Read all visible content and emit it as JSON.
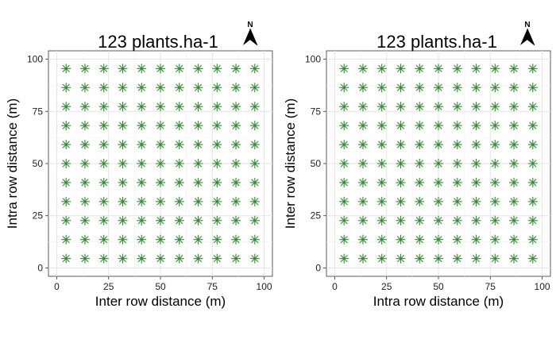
{
  "chart_data": [
    {
      "type": "scatter",
      "title": "123  plants.ha-1",
      "xlabel": "Inter row distance (m)",
      "ylabel": "Intra row distance (m)",
      "xlim": [
        -4,
        104
      ],
      "ylim": [
        -4,
        104
      ],
      "x_ticks": [
        0,
        25,
        50,
        75,
        100
      ],
      "y_ticks": [
        0,
        25,
        50,
        75,
        100
      ],
      "x_tick_labels": [
        "0",
        "25",
        "50",
        "75",
        "100"
      ],
      "y_tick_labels": [
        "0",
        "25",
        "50",
        "75",
        "100"
      ],
      "grid": true,
      "x_positions": [
        4.5,
        13.6,
        22.7,
        31.8,
        40.9,
        50.0,
        59.1,
        68.2,
        77.3,
        86.4,
        95.5
      ],
      "y_positions": [
        4.5,
        13.6,
        22.7,
        31.8,
        40.9,
        50.0,
        59.1,
        68.2,
        77.3,
        86.4,
        95.5
      ],
      "marker": "asterisk",
      "marker_color": "#2e8b2e",
      "north_arrow_label": "N"
    },
    {
      "type": "scatter",
      "title": "123  plants.ha-1",
      "xlabel": "Intra row distance (m)",
      "ylabel": "Inter row distance (m)",
      "xlim": [
        -4,
        104
      ],
      "ylim": [
        -4,
        104
      ],
      "x_ticks": [
        0,
        25,
        50,
        75,
        100
      ],
      "y_ticks": [
        0,
        25,
        50,
        75,
        100
      ],
      "x_tick_labels": [
        "0",
        "25",
        "50",
        "75",
        "100"
      ],
      "y_tick_labels": [
        "0",
        "25",
        "50",
        "75",
        "100"
      ],
      "grid": true,
      "x_positions": [
        4.5,
        13.6,
        22.7,
        31.8,
        40.9,
        50.0,
        59.1,
        68.2,
        77.3,
        86.4,
        95.5
      ],
      "y_positions": [
        4.5,
        13.6,
        22.7,
        31.8,
        40.9,
        50.0,
        59.1,
        68.2,
        77.3,
        86.4,
        95.5
      ],
      "marker": "asterisk",
      "marker_color": "#2e8b2e",
      "north_arrow_label": "N"
    }
  ]
}
